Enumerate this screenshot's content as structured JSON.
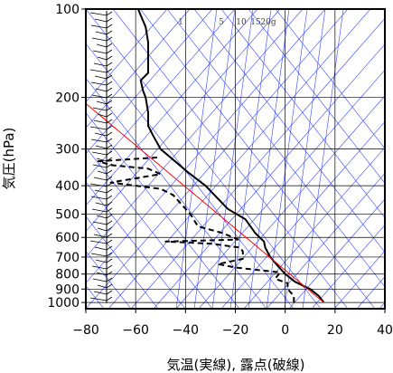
{
  "chart_data": {
    "type": "line",
    "title": "",
    "xlabel": "気温(実線), 露点(破線)",
    "ylabel": "気圧(hPa)",
    "xlim": [
      -80,
      40
    ],
    "ylim": [
      1050,
      100
    ],
    "y_scale": "log",
    "x_ticks": [
      -80,
      -60,
      -40,
      -20,
      0,
      20,
      40
    ],
    "y_ticks": [
      100,
      200,
      300,
      400,
      500,
      600,
      700,
      800,
      900,
      1000
    ],
    "mixing_ratio_labels": [
      {
        "text": "1",
        "value": 1
      },
      {
        "text": "5",
        "value": 5
      },
      {
        "text": "10",
        "value": 10
      },
      {
        "text": "15",
        "value": 15
      },
      {
        "text": "20g",
        "value": 20
      }
    ],
    "series": [
      {
        "style": "solid",
        "color": "#000000",
        "points": [
          [
            15.5,
            1000
          ],
          [
            13.5,
            950
          ],
          [
            10,
            900
          ],
          [
            4,
            850
          ],
          [
            0,
            800
          ],
          [
            -3,
            750
          ],
          [
            -6,
            700
          ],
          [
            -8,
            650
          ],
          [
            -8.5,
            620
          ],
          [
            -12,
            580
          ],
          [
            -16,
            520
          ],
          [
            -23,
            480
          ],
          [
            -32,
            400
          ],
          [
            -39,
            360
          ],
          [
            -50,
            300
          ],
          [
            -53,
            270
          ],
          [
            -55,
            250
          ],
          [
            -55,
            225
          ],
          [
            -56,
            200
          ],
          [
            -57,
            190
          ],
          [
            -58,
            175
          ],
          [
            -55,
            165
          ],
          [
            -55,
            155
          ],
          [
            -55,
            130
          ],
          [
            -56,
            115
          ],
          [
            -58,
            105
          ],
          [
            -59,
            100
          ]
        ]
      },
      {
        "style": "dashed",
        "color": "#000000",
        "points": [
          [
            3.5,
            1000
          ],
          [
            3.5,
            950
          ],
          [
            1,
            900
          ],
          [
            1,
            860
          ],
          [
            -4,
            830
          ],
          [
            -2,
            790
          ],
          [
            -20,
            760
          ],
          [
            -27,
            740
          ],
          [
            -17,
            710
          ],
          [
            -17,
            670
          ],
          [
            -18,
            650
          ],
          [
            -30,
            630
          ],
          [
            -48,
            620
          ],
          [
            -19,
            610
          ],
          [
            -25,
            580
          ],
          [
            -35,
            550
          ],
          [
            -38,
            500
          ],
          [
            -45,
            430
          ],
          [
            -50,
            410
          ],
          [
            -70,
            390
          ],
          [
            -50,
            365
          ],
          [
            -55,
            350
          ],
          [
            -70,
            340
          ],
          [
            -75,
            330
          ],
          [
            -50,
            320
          ]
        ]
      },
      {
        "style": "solid",
        "color": "#ff0000",
        "points": [
          [
            15.5,
            1000
          ],
          [
            -80,
            210
          ]
        ]
      }
    ]
  }
}
